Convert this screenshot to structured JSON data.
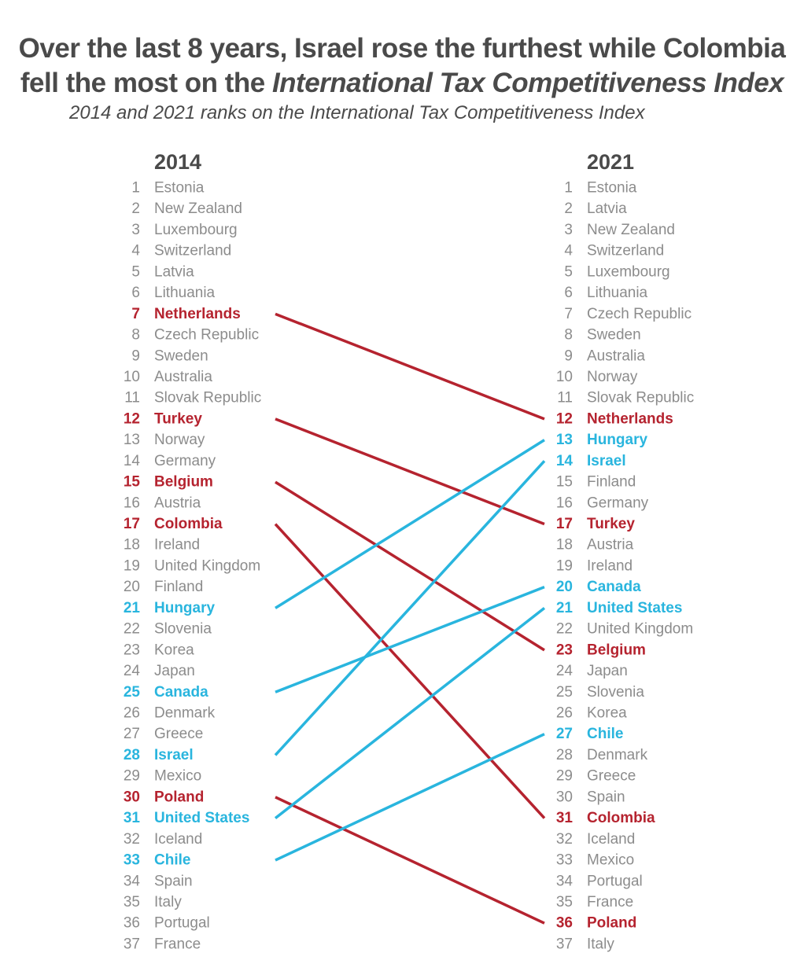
{
  "title_line1": "Over the last 8 years, Israel rose the furthest while Colombia",
  "title_line2_plain": "fell the most on the ",
  "title_line2_italic": "International Tax Competitiveness Index",
  "subtitle": "2014 and 2021 ranks on the International Tax Competitiveness Index",
  "colors": {
    "gray": "#8c8c8c",
    "red": "#b5232f",
    "blue": "#29b5de",
    "dark": "#4a4a4a"
  },
  "chart_data": {
    "type": "slope",
    "left_header": "2014",
    "right_header": "2021",
    "left": [
      "Estonia",
      "New Zealand",
      "Luxembourg",
      "Switzerland",
      "Latvia",
      "Lithuania",
      "Netherlands",
      "Czech Republic",
      "Sweden",
      "Australia",
      "Slovak Republic",
      "Turkey",
      "Norway",
      "Germany",
      "Belgium",
      "Austria",
      "Colombia",
      "Ireland",
      "United Kingdom",
      "Finland",
      "Hungary",
      "Slovenia",
      "Korea",
      "Japan",
      "Canada",
      "Denmark",
      "Greece",
      "Israel",
      "Mexico",
      "Poland",
      "United States",
      "Iceland",
      "Chile",
      "Spain",
      "Italy",
      "Portugal",
      "France"
    ],
    "right": [
      "Estonia",
      "Latvia",
      "New Zealand",
      "Switzerland",
      "Luxembourg",
      "Lithuania",
      "Czech Republic",
      "Sweden",
      "Australia",
      "Norway",
      "Slovak Republic",
      "Netherlands",
      "Hungary",
      "Israel",
      "Finland",
      "Germany",
      "Turkey",
      "Austria",
      "Ireland",
      "Canada",
      "United States",
      "United Kingdom",
      "Belgium",
      "Japan",
      "Slovenia",
      "Korea",
      "Chile",
      "Denmark",
      "Greece",
      "Spain",
      "Colombia",
      "Iceland",
      "Mexico",
      "Portugal",
      "France",
      "Poland",
      "Italy"
    ],
    "falling": [
      "Netherlands",
      "Turkey",
      "Belgium",
      "Colombia",
      "Poland"
    ],
    "rising": [
      "Hungary",
      "Canada",
      "Israel",
      "United States",
      "Chile"
    ]
  }
}
